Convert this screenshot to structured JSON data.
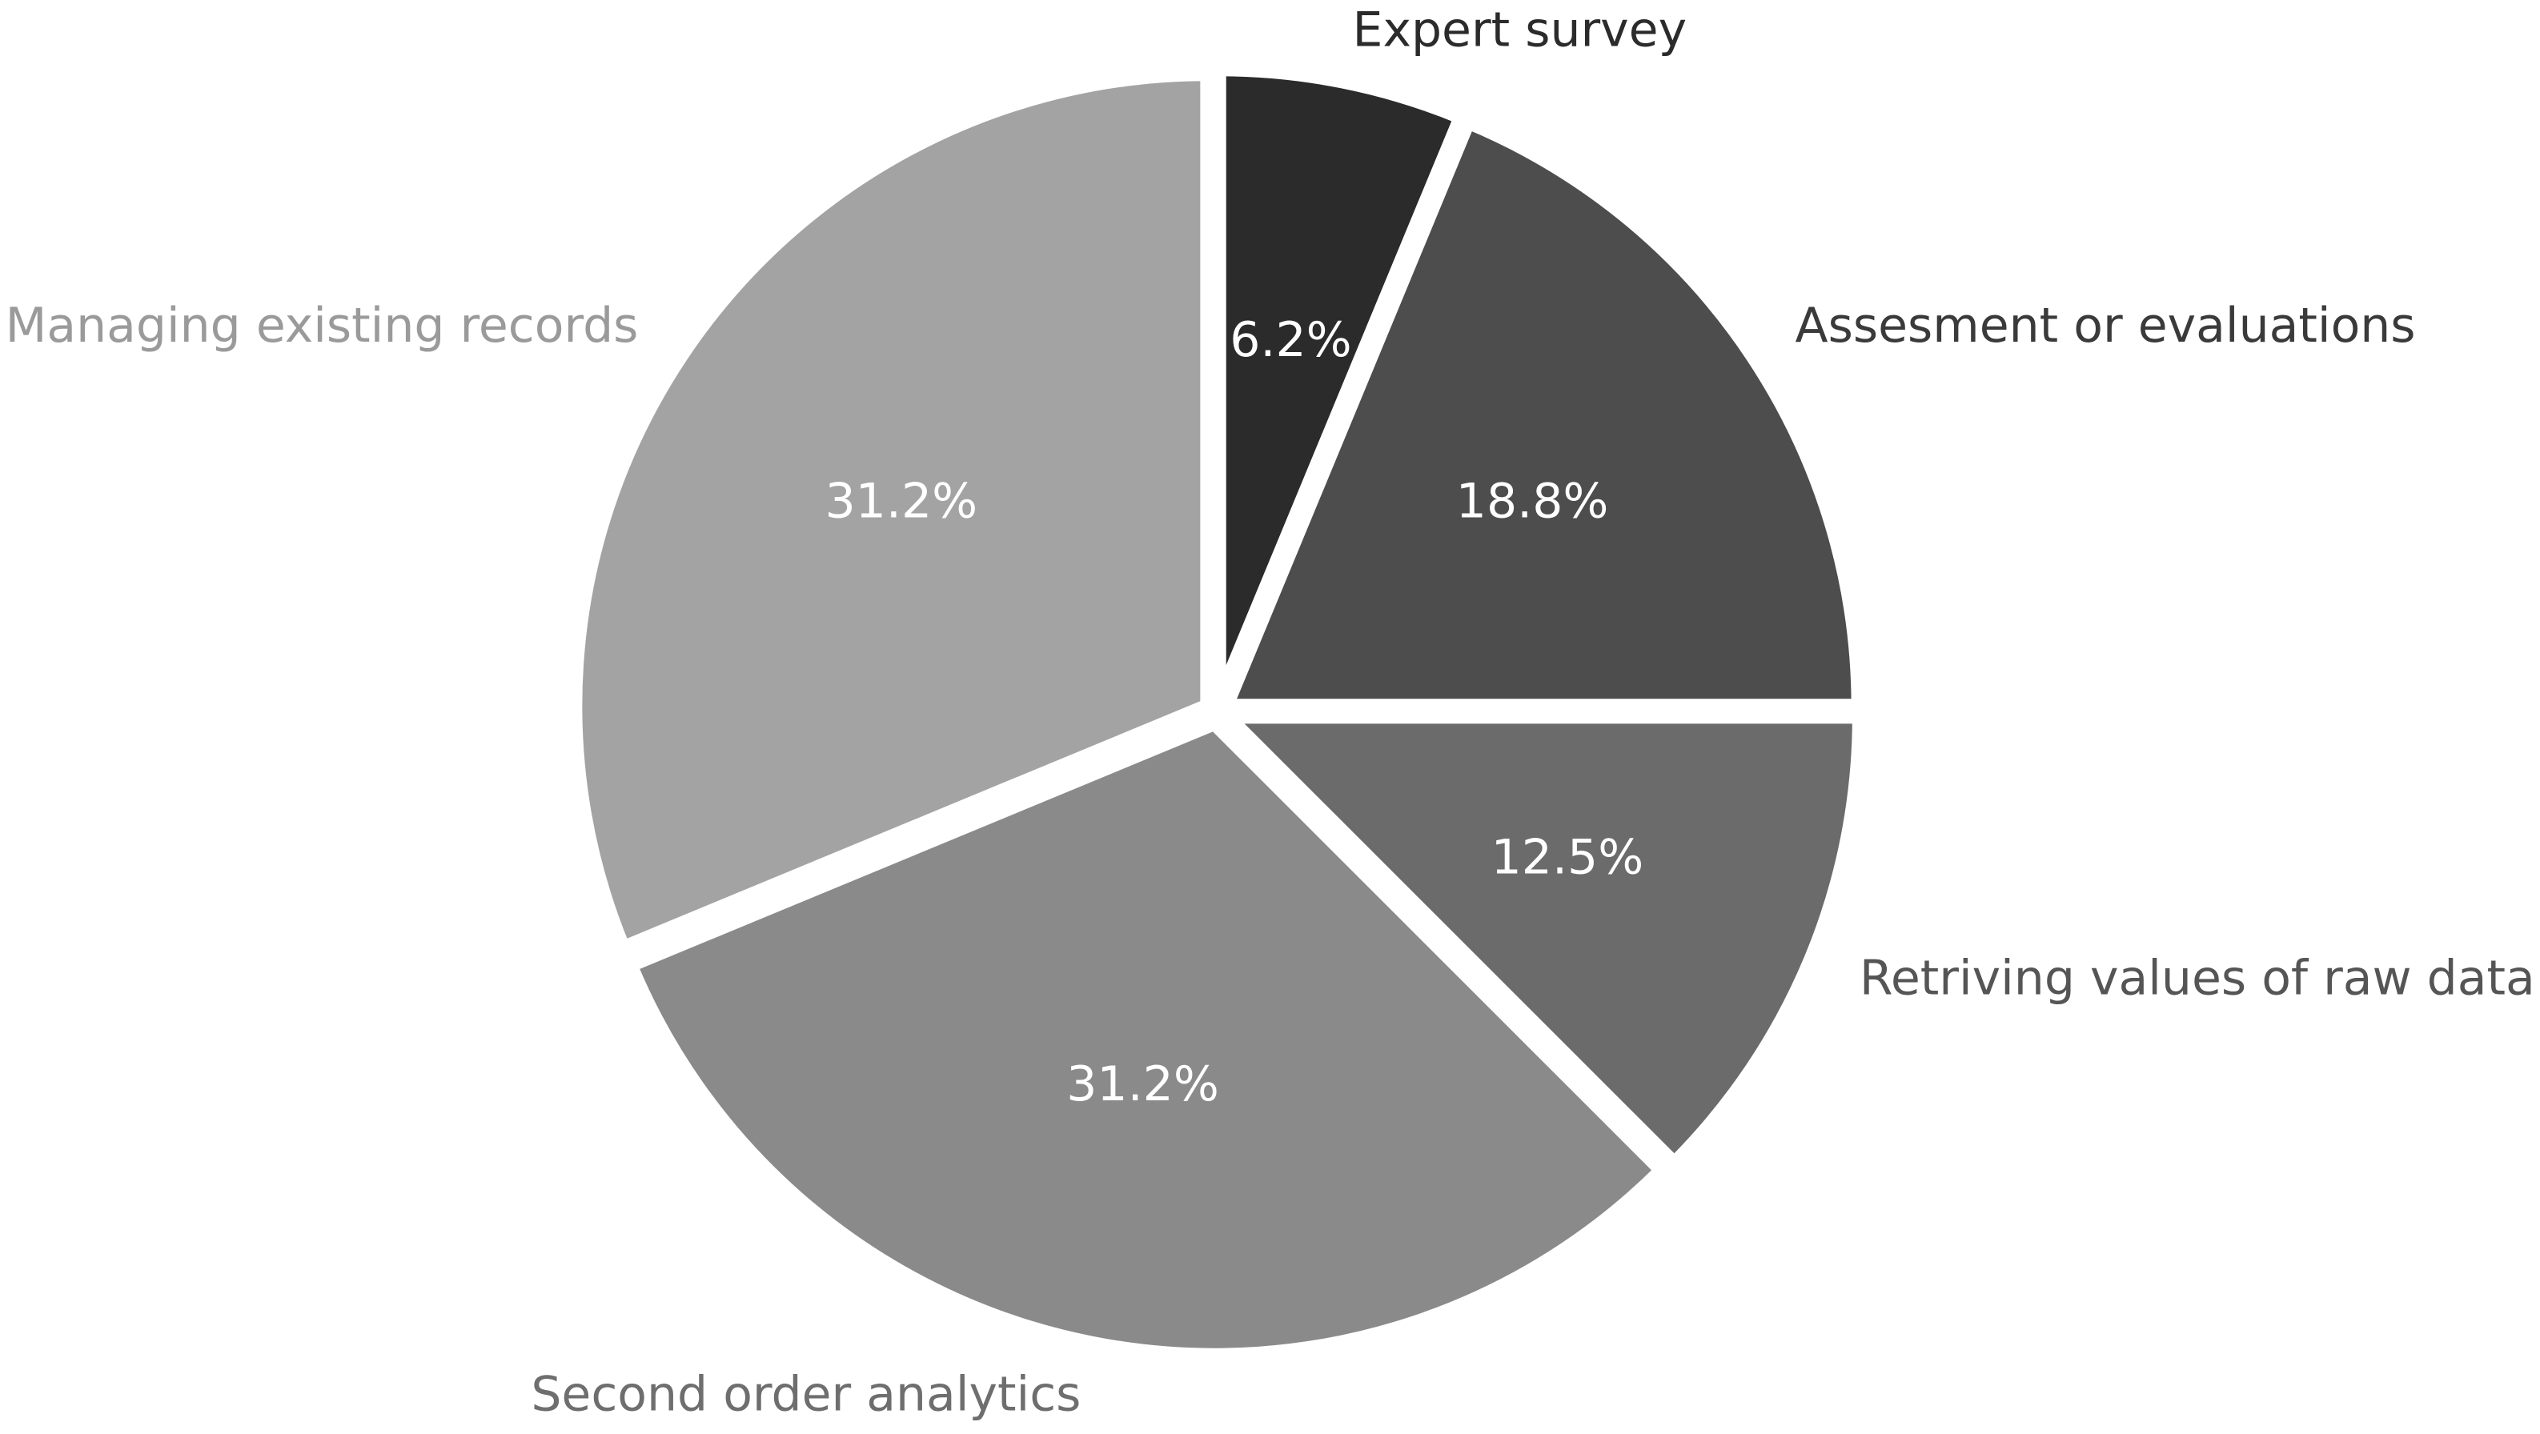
{
  "chart_data": {
    "type": "pie",
    "title": "",
    "start_angle_deg": 90,
    "direction": "clockwise",
    "slices": [
      {
        "label": "Expert survey",
        "value": 6.25,
        "pct_label": "6.2%",
        "color": "#2b2b2b",
        "label_color": "#2b2b2b"
      },
      {
        "label": "Assesment or evaluations",
        "value": 18.75,
        "pct_label": "18.8%",
        "color": "#4d4d4d",
        "label_color": "#3a3a3a"
      },
      {
        "label": "Retriving values of raw data",
        "value": 12.5,
        "pct_label": "12.5%",
        "color": "#6b6b6b",
        "label_color": "#555555"
      },
      {
        "label": "Second order analytics",
        "value": 31.25,
        "pct_label": "31.2%",
        "color": "#8a8a8a",
        "label_color": "#6e6e6e"
      },
      {
        "label": "Managing existing records",
        "value": 31.25,
        "pct_label": "31.2%",
        "color": "#a3a3a3",
        "label_color": "#9a9a9a"
      }
    ]
  }
}
